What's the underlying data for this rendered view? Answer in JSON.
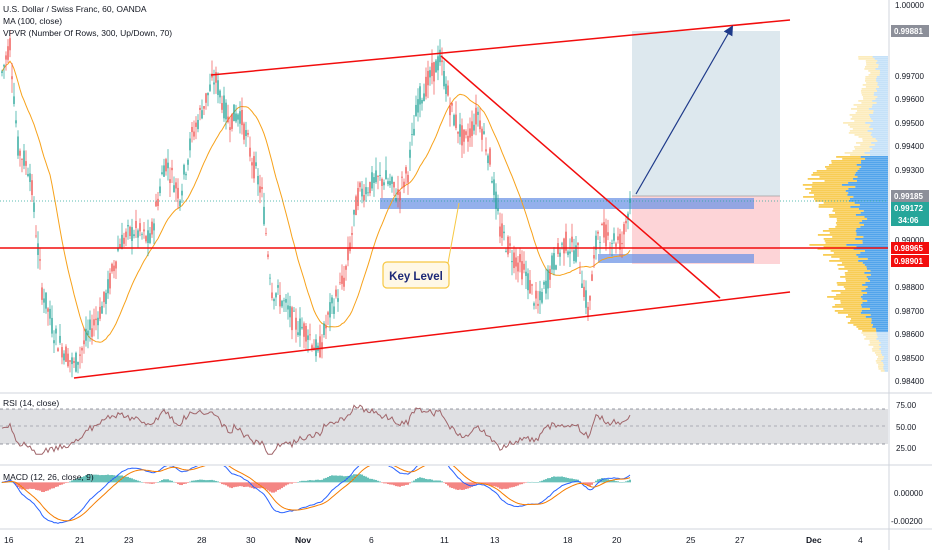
{
  "header": {
    "symbol_line": "U.S. Dollar / Swiss Franc, 60, OANDA",
    "ma_line": "MA (100, close)",
    "vpvr_line": "VPVR (Number Of Rows, 300, Up/Down, 70)",
    "rsi_line": "RSI (14, close)",
    "macd_line": "MACD (12, 26, close, 9)"
  },
  "annotation": {
    "key_level": "Key Level"
  },
  "colors": {
    "up": "#26a69a",
    "down": "#ef5350",
    "ma": "#f7a21b",
    "trendline": "#f20d0d",
    "arrow": "#1e3a8a",
    "key_zone": "#6f96e6",
    "vpvr_up": "#f7c843",
    "vpvr_down": "#3f9ae9",
    "rsi": "#a0656a",
    "macd": "#2962ff",
    "signal": "#f57c00"
  },
  "price_axis": {
    "ticks": [
      "1.00000",
      "0.99881",
      "0.99700",
      "0.99600",
      "0.99500",
      "0.99400",
      "0.99300",
      "0.99185",
      "0.99172",
      "34:06",
      "0.99000",
      "0.98965",
      "0.98901",
      "0.98800",
      "0.98700",
      "0.98600",
      "0.98500",
      "0.98400"
    ],
    "labels": [
      {
        "text": "0.99881",
        "style": "grey"
      },
      {
        "text": "0.99185",
        "style": "grey"
      },
      {
        "text": "0.99172",
        "style": "green"
      },
      {
        "text": "34:06",
        "style": "green"
      },
      {
        "text": "0.98965",
        "style": "red"
      },
      {
        "text": "0.98901",
        "style": "red"
      }
    ]
  },
  "rsi_axis": {
    "ticks": [
      "75.00",
      "50.00",
      "25.00"
    ]
  },
  "macd_axis": {
    "ticks": [
      "0.00000",
      "-0.00200"
    ]
  },
  "time_axis": {
    "ticks": [
      "16",
      "21",
      "23",
      "28",
      "30",
      "Nov",
      "6",
      "11",
      "13",
      "18",
      "20",
      "25",
      "27",
      "Dec",
      "4"
    ]
  },
  "chart_data": {
    "type": "candlestick",
    "symbol": "USDCHF",
    "interval": "60",
    "price_range": [
      0.9836,
      1.0003
    ],
    "trendlines": [
      {
        "from": [
          "16",
          0.9899
        ],
        "to": [
          "4",
          0.9899
        ]
      },
      {
        "from": [
          "21",
          0.98425
        ],
        "to": [
          "28",
          0.9877
        ]
      },
      {
        "from": [
          "28",
          0.9971
        ],
        "to": [
          "11",
          0.9979
        ]
      },
      {
        "from": [
          "11",
          0.9979
        ],
        "to": [
          "27",
          0.9878
        ]
      }
    ],
    "key_level": [
      0.991,
      0.9915
    ],
    "entry_marker": [
      0.98965,
      0.98901
    ],
    "position": {
      "entry": 0.99172,
      "stop": 0.98901,
      "target": 0.99881,
      "label_price": 0.99185
    },
    "ma_period": 100,
    "rsi_levels": [
      25,
      50,
      75
    ],
    "rsi_range": [
      5,
      90
    ],
    "macd_range": [
      -0.0028,
      0.0009
    ]
  }
}
